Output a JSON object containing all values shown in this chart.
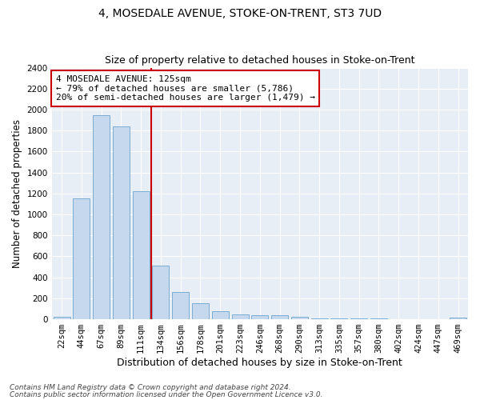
{
  "title": "4, MOSEDALE AVENUE, STOKE-ON-TRENT, ST3 7UD",
  "subtitle": "Size of property relative to detached houses in Stoke-on-Trent",
  "xlabel": "Distribution of detached houses by size in Stoke-on-Trent",
  "ylabel": "Number of detached properties",
  "categories": [
    "22sqm",
    "44sqm",
    "67sqm",
    "89sqm",
    "111sqm",
    "134sqm",
    "156sqm",
    "178sqm",
    "201sqm",
    "223sqm",
    "246sqm",
    "268sqm",
    "290sqm",
    "313sqm",
    "335sqm",
    "357sqm",
    "380sqm",
    "402sqm",
    "424sqm",
    "447sqm",
    "469sqm"
  ],
  "values": [
    25,
    1155,
    1950,
    1840,
    1220,
    510,
    260,
    155,
    80,
    50,
    35,
    35,
    20,
    10,
    8,
    5,
    5,
    4,
    3,
    3,
    15
  ],
  "bar_color": "#c5d8ee",
  "bar_edge_color": "#7aadd4",
  "vline_x": 4.5,
  "vline_color": "#cc0000",
  "annotation_text": "4 MOSEDALE AVENUE: 125sqm\n← 79% of detached houses are smaller (5,786)\n20% of semi-detached houses are larger (1,479) →",
  "annotation_box_color": "#ffffff",
  "annotation_box_edge_color": "#cc0000",
  "ylim": [
    0,
    2400
  ],
  "footnote1": "Contains HM Land Registry data © Crown copyright and database right 2024.",
  "footnote2": "Contains public sector information licensed under the Open Government Licence v3.0.",
  "bg_color": "#e8eef5",
  "grid_color": "#ffffff",
  "title_fontsize": 10,
  "subtitle_fontsize": 9,
  "xlabel_fontsize": 9,
  "ylabel_fontsize": 8.5,
  "tick_fontsize": 7.5,
  "annotation_fontsize": 8,
  "footnote_fontsize": 6.5
}
